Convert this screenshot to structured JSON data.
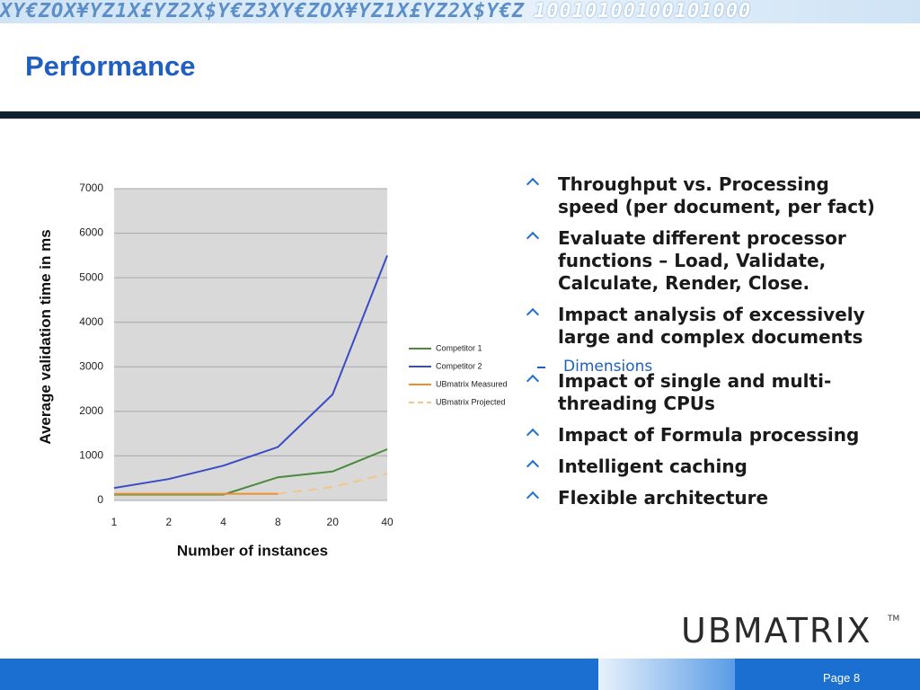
{
  "banner": [
    "XY€ZOX¥YZ1X£YZ2X$Y€Z3XY€ZOX¥YZ1X£YZ2X$Y€Z",
    "10010100100101000"
  ],
  "title": "Performance",
  "bullets": [
    {
      "text": "Throughput vs. Processing speed (per document, per fact)"
    },
    {
      "text": "Evaluate different processor functions – Load, Validate, Calculate, Render, Close."
    },
    {
      "text": "Impact analysis of excessively large and complex documents",
      "sub": [
        "Dimensions"
      ]
    },
    {
      "text": "Impact of single and multi-threading CPUs"
    },
    {
      "text": "Impact of Formula processing"
    },
    {
      "text": "Intelligent caching"
    },
    {
      "text": "Flexible architecture"
    }
  ],
  "logo": "UBMATRIX",
  "trademark": "TM",
  "footer": "Page 8",
  "chart_data": {
    "type": "line",
    "xlabel": "Number of instances",
    "ylabel": "Average validation time in ms",
    "categories": [
      "1",
      "2",
      "4",
      "8",
      "20",
      "40"
    ],
    "ylim": [
      0,
      7000
    ],
    "yticks": [
      0,
      1000,
      2000,
      3000,
      4000,
      5000,
      6000,
      7000
    ],
    "grid": true,
    "series": [
      {
        "name": "Competitor 1",
        "color": "#4a8a3c",
        "style": "solid",
        "values": [
          130,
          130,
          130,
          520,
          650,
          1150
        ]
      },
      {
        "name": "Competitor 2",
        "color": "#3a4cc4",
        "style": "solid",
        "values": [
          280,
          480,
          780,
          1200,
          2380,
          5500
        ]
      },
      {
        "name": "UBmatrix Measured",
        "color": "#ee8f2a",
        "style": "solid",
        "values": [
          150,
          150,
          150,
          150,
          null,
          null
        ]
      },
      {
        "name": "UBmatrix Projected",
        "color": "#f2c58c",
        "style": "dashed",
        "values": [
          null,
          null,
          null,
          150,
          300,
          600
        ]
      }
    ],
    "legend": "right"
  }
}
